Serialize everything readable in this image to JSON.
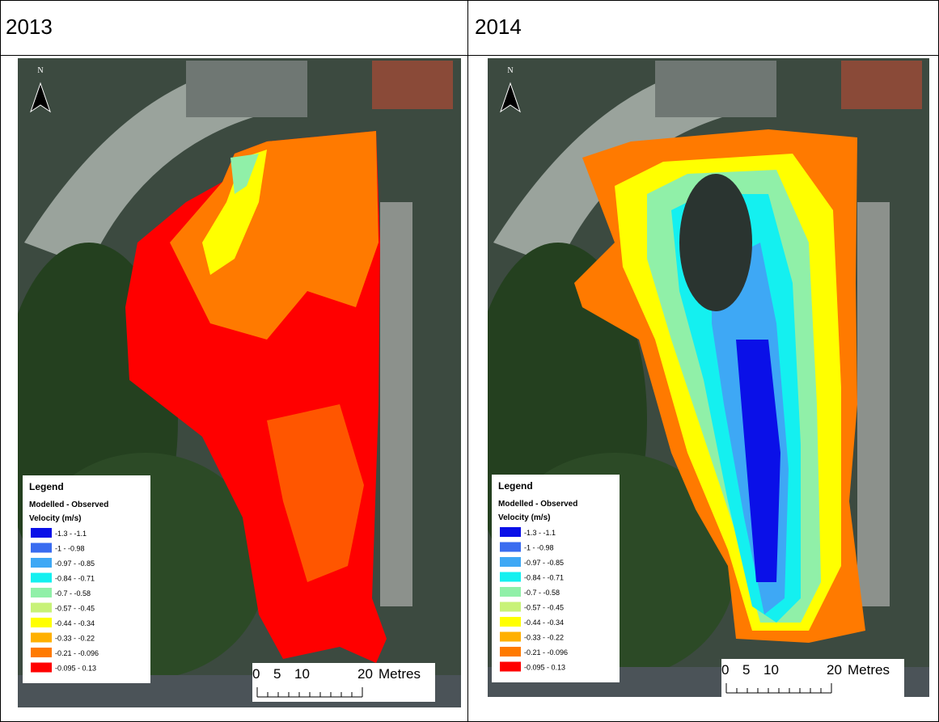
{
  "panels": [
    {
      "year": "2013"
    },
    {
      "year": "2014"
    }
  ],
  "map": {
    "north": "N",
    "legend": {
      "title": "Legend",
      "subtitle": "Modelled - Observed",
      "unit": "Velocity (m/s)",
      "items": [
        {
          "label": "-1.3 - -1.1",
          "color": "#0a10e8"
        },
        {
          "label": "-1 - -0.98",
          "color": "#3a6cf0"
        },
        {
          "label": "-0.97 - -0.85",
          "color": "#3ea8f5"
        },
        {
          "label": "-0.84 - -0.71",
          "color": "#14f0f0"
        },
        {
          "label": "-0.7 - -0.58",
          "color": "#90f0a8"
        },
        {
          "label": "-0.57 - -0.45",
          "color": "#c8f278"
        },
        {
          "label": "-0.44 - -0.34",
          "color": "#ffff00"
        },
        {
          "label": "-0.33 - -0.22",
          "color": "#ffb000"
        },
        {
          "label": "-0.21 - -0.096",
          "color": "#ff7a00"
        },
        {
          "label": "-0.095 - 0.13",
          "color": "#ff0000"
        }
      ]
    },
    "scale": {
      "ticks": [
        "0",
        "5",
        "10",
        "20"
      ],
      "unit": "Metres"
    }
  }
}
